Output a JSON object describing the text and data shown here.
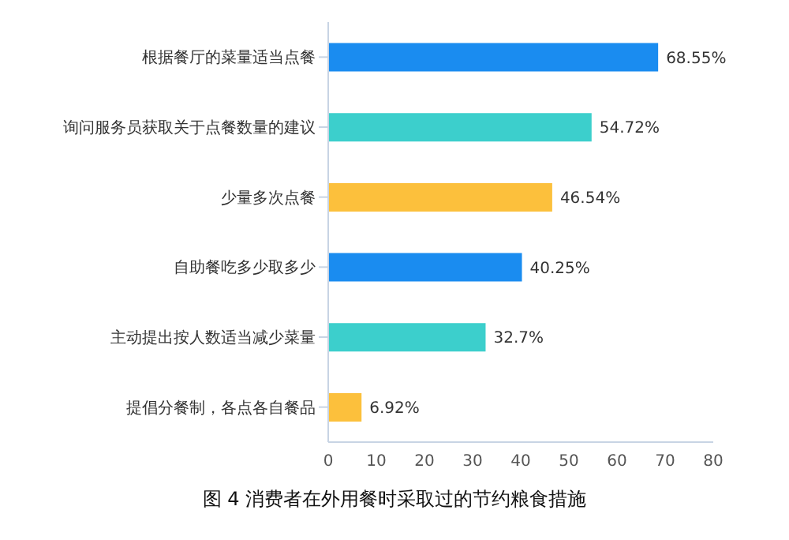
{
  "chart_data": {
    "type": "bar",
    "orientation": "horizontal",
    "title": "图 4 消费者在外用餐时采取过的节约粮食措施",
    "categories": [
      "根据餐厅的菜量适当点餐",
      "询问服务员获取关于点餐数量的建议",
      "少量多次点餐",
      "自助餐吃多少取多少",
      "主动提出按人数适当减少菜量",
      "提倡分餐制，各点各自餐品"
    ],
    "values": [
      68.55,
      54.72,
      46.54,
      40.25,
      32.7,
      6.92
    ],
    "value_labels": [
      "68.55%",
      "54.72%",
      "46.54%",
      "40.25%",
      "32.7%",
      "6.92%"
    ],
    "colors": [
      "#1a8cf0",
      "#3ccfcc",
      "#fcc03c",
      "#1a8cf0",
      "#3ccfcc",
      "#fcc03c"
    ],
    "xlim": [
      0,
      80
    ],
    "xticks": [
      0,
      10,
      20,
      30,
      40,
      50,
      60,
      70,
      80
    ],
    "grid": false
  }
}
